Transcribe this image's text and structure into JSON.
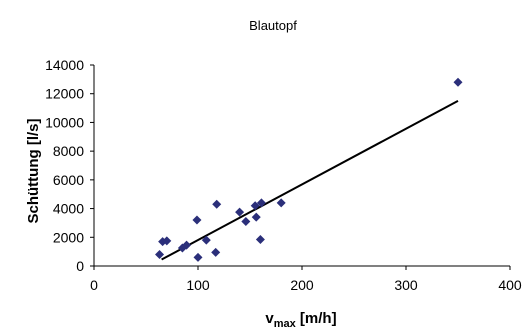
{
  "chart_data": {
    "type": "scatter",
    "title": "Blautopf",
    "xlabel": {
      "main": "v",
      "sub": "max",
      "rest": " [m/h]"
    },
    "ylabel": "Schüttung [l/s]",
    "xlim": [
      0,
      400
    ],
    "ylim": [
      0,
      14000
    ],
    "x_ticks": [
      "0",
      "100",
      "200",
      "300",
      "400"
    ],
    "y_ticks": [
      "0",
      "2000",
      "4000",
      "6000",
      "8000",
      "10000",
      "12000",
      "14000"
    ],
    "grid": false,
    "marker": "diamond",
    "colors": {
      "points": "#2b2f7a",
      "trendline": "#000000"
    },
    "series": [
      {
        "x": [
          63,
          66,
          70,
          85,
          89,
          99,
          100,
          108,
          117,
          118,
          140,
          146,
          155,
          156,
          160,
          161,
          180,
          350
        ],
        "y": [
          800,
          1700,
          1750,
          1250,
          1450,
          3200,
          600,
          1800,
          950,
          4300,
          3750,
          3100,
          4200,
          3400,
          1850,
          4400,
          4400,
          12800
        ]
      }
    ],
    "trendline": {
      "x": [
        65,
        350
      ],
      "y": [
        450,
        11500
      ]
    }
  }
}
